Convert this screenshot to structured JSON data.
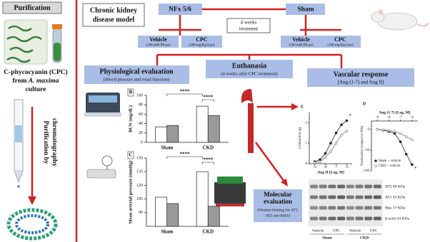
{
  "purification": {
    "title": "Purification",
    "product": {
      "line1": "C-phycocyanin (CPC)",
      "from": "from",
      "species": "A. maxima",
      "culture": "culture"
    },
    "method": [
      "Purification by",
      "chromatography"
    ]
  },
  "model": {
    "title": [
      "Chronic kidney",
      "disease model"
    ]
  },
  "groups": {
    "nfx": "NFx 5/6",
    "sham": "Sham",
    "treatment": [
      "4 weeks",
      "treatment"
    ]
  },
  "arms": [
    {
      "label": "Vehicle",
      "dose": "(100 mM PB po)"
    },
    {
      "label": "CPC",
      "dose": "(100 mg/Kg/d po)"
    },
    {
      "label": "Vehicle",
      "dose": "(100 mM PB po)"
    },
    {
      "label": "CPC",
      "dose": "(100 mg/Kg/d po)"
    }
  ],
  "euthanasia": {
    "title": "Euthanasia",
    "note": "(4 weeks after CPC treatment)"
  },
  "physiological": {
    "title": "Physiological evaluation",
    "note": "(Blood pressure and renal function)"
  },
  "vascular": {
    "title": "Vascular response",
    "note": "[Ang-(1-7) and Ang II]"
  },
  "molecular": {
    "title": [
      "Molecular",
      "evaluation"
    ],
    "note": [
      "(Western blotting for AT1,",
      "AT2 and MAS)"
    ]
  },
  "blot": {
    "bands": [
      "AT2 48 KDa",
      "AT1 43 KDa",
      "Mas 37 KDa",
      "β-actin 43 KDa"
    ],
    "lanes": [
      "Vehicle",
      "CPC",
      "Vehicle",
      "CPC"
    ],
    "groups": [
      "Sham",
      "CKD"
    ]
  },
  "charts": [
    {
      "type": "bar",
      "panel": "B",
      "y_label": "BUN (mg/dL)",
      "categories": [
        "Sham",
        "CKD"
      ],
      "series": [
        {
          "color": "#ffffff",
          "values": [
            33,
            77
          ]
        },
        {
          "color": "#9a9a9a",
          "values": [
            36,
            57
          ]
        }
      ],
      "ylim": [
        0,
        100
      ],
      "yticks": [
        0,
        20,
        40,
        60,
        80,
        100
      ],
      "annotations": [
        "****",
        "****"
      ]
    },
    {
      "type": "bar",
      "panel": "C",
      "y_label": "Mean arterial pressure (mmHg)",
      "categories": [
        "Sham",
        "CKD"
      ],
      "series": [
        {
          "color": "#ffffff",
          "values": [
            107,
            135
          ]
        },
        {
          "color": "#9a9a9a",
          "values": [
            100,
            97
          ]
        }
      ],
      "ylim": [
        75,
        150
      ],
      "yticks": [
        90,
        105,
        120,
        135,
        150
      ],
      "annotations": [
        "****",
        "****"
      ]
    },
    {
      "type": "line",
      "panel": "E",
      "y_label": "Contraction (g)",
      "x_label": "Ang II [Log, M]",
      "x": [
        -9,
        -8.5,
        -8,
        -7.5,
        -7,
        -6.5,
        -6
      ],
      "series": [
        {
          "color": "#222222",
          "values": [
            0.1,
            0.2,
            0.5,
            1.0,
            1.5,
            1.9,
            2.1
          ]
        },
        {
          "color": "#777777",
          "values": [
            0.05,
            0.1,
            0.3,
            0.6,
            1.0,
            1.4,
            1.6
          ]
        }
      ],
      "xlim": [
        -9.5,
        -5.5
      ],
      "xticks": [
        -9,
        -8,
        -7,
        -6
      ],
      "ylim": [
        0,
        2.5
      ],
      "yticks": [
        0,
        1,
        2
      ],
      "annotations": [
        "*"
      ]
    },
    {
      "type": "line",
      "panel": "D",
      "y_label": "%relaxation (respect to NA)",
      "x_label": "Ang (1-7) [Log, M]",
      "x": [
        -9,
        -8.5,
        -8,
        -7.5,
        -7,
        -6.5,
        -6
      ],
      "series": [
        {
          "name": "Sham + vehicle",
          "color": "#222222",
          "values": [
            0,
            -2,
            -5,
            -10,
            -30,
            -60,
            -85
          ]
        },
        {
          "name": "CKD + vehicle",
          "color": "#777777",
          "values": [
            0,
            -1,
            -3,
            -5,
            -10,
            -18,
            -25
          ]
        }
      ],
      "xlim": [
        -9.5,
        -5.5
      ],
      "xticks": [
        -9,
        -8,
        -7,
        -6
      ],
      "ylim": [
        -100,
        20
      ],
      "yticks": [
        -100,
        -50,
        0
      ],
      "annotations": [
        "*"
      ]
    }
  ]
}
